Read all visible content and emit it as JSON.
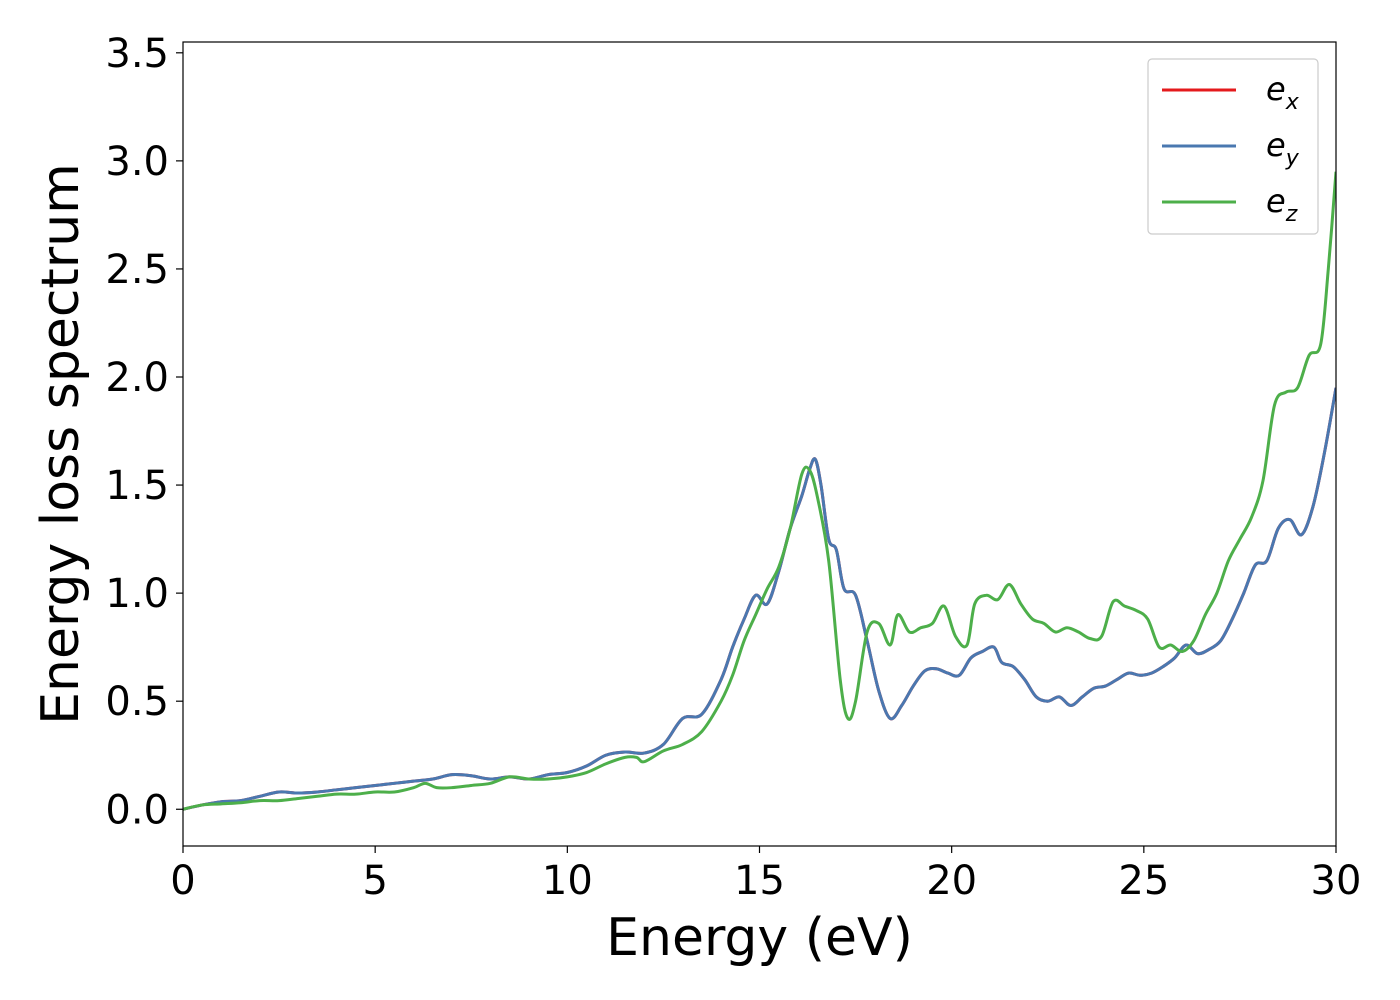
{
  "chart_data": {
    "type": "line",
    "title": "",
    "xlabel": "Energy (eV)",
    "ylabel": "Energy loss spectrum",
    "xlim": [
      0,
      30
    ],
    "ylim": [
      -0.17,
      3.55
    ],
    "xticks": [
      0,
      5,
      10,
      15,
      20,
      25,
      30
    ],
    "xtick_labels": [
      "0",
      "5",
      "10",
      "15",
      "20",
      "25",
      "30"
    ],
    "yticks": [
      0.0,
      0.5,
      1.0,
      1.5,
      2.0,
      2.5,
      3.0,
      3.5
    ],
    "ytick_labels": [
      "0.0",
      "0.5",
      "1.0",
      "1.5",
      "2.0",
      "2.5",
      "3.0",
      "3.5"
    ],
    "grid": false,
    "legend_position": "top-right",
    "series": [
      {
        "name": "e",
        "sub": "x",
        "color": "#e41a1c",
        "x": [
          0,
          0.5,
          1,
          1.5,
          2,
          2.5,
          3,
          3.5,
          4,
          4.5,
          5,
          5.5,
          6,
          6.5,
          7,
          7.5,
          8,
          8.5,
          9,
          9.5,
          10,
          10.5,
          11,
          11.5,
          12,
          12.5,
          13,
          13.5,
          14,
          14.3,
          14.6,
          14.9,
          15.2,
          15.5,
          15.8,
          16.1,
          16.3,
          16.45,
          16.6,
          16.8,
          17,
          17.2,
          17.5,
          17.8,
          18.1,
          18.4,
          18.7,
          19,
          19.3,
          19.6,
          19.9,
          20.2,
          20.5,
          20.8,
          21.1,
          21.3,
          21.6,
          21.9,
          22.2,
          22.5,
          22.8,
          23.1,
          23.4,
          23.7,
          24,
          24.3,
          24.6,
          24.9,
          25.2,
          25.5,
          25.8,
          26.1,
          26.4,
          26.7,
          27,
          27.3,
          27.6,
          27.9,
          28.2,
          28.5,
          28.8,
          29.1,
          29.4,
          29.7,
          30
        ],
        "y": [
          0.0,
          0.02,
          0.035,
          0.04,
          0.06,
          0.08,
          0.075,
          0.08,
          0.09,
          0.1,
          0.11,
          0.12,
          0.13,
          0.14,
          0.16,
          0.155,
          0.14,
          0.15,
          0.14,
          0.16,
          0.17,
          0.2,
          0.25,
          0.265,
          0.26,
          0.3,
          0.42,
          0.44,
          0.6,
          0.75,
          0.88,
          0.99,
          0.95,
          1.1,
          1.3,
          1.45,
          1.57,
          1.62,
          1.5,
          1.25,
          1.2,
          1.02,
          0.99,
          0.78,
          0.55,
          0.42,
          0.48,
          0.57,
          0.64,
          0.65,
          0.63,
          0.62,
          0.7,
          0.73,
          0.75,
          0.68,
          0.66,
          0.6,
          0.52,
          0.5,
          0.52,
          0.48,
          0.52,
          0.56,
          0.57,
          0.6,
          0.63,
          0.62,
          0.63,
          0.66,
          0.7,
          0.76,
          0.72,
          0.74,
          0.78,
          0.88,
          1.0,
          1.13,
          1.15,
          1.3,
          1.34,
          1.27,
          1.4,
          1.65,
          1.95
        ]
      },
      {
        "name": "e",
        "sub": "y",
        "color": "#4a78b0",
        "x": [
          0,
          0.5,
          1,
          1.5,
          2,
          2.5,
          3,
          3.5,
          4,
          4.5,
          5,
          5.5,
          6,
          6.5,
          7,
          7.5,
          8,
          8.5,
          9,
          9.5,
          10,
          10.5,
          11,
          11.5,
          12,
          12.5,
          13,
          13.5,
          14,
          14.3,
          14.6,
          14.9,
          15.2,
          15.5,
          15.8,
          16.1,
          16.3,
          16.45,
          16.6,
          16.8,
          17,
          17.2,
          17.5,
          17.8,
          18.1,
          18.4,
          18.7,
          19,
          19.3,
          19.6,
          19.9,
          20.2,
          20.5,
          20.8,
          21.1,
          21.3,
          21.6,
          21.9,
          22.2,
          22.5,
          22.8,
          23.1,
          23.4,
          23.7,
          24,
          24.3,
          24.6,
          24.9,
          25.2,
          25.5,
          25.8,
          26.1,
          26.4,
          26.7,
          27,
          27.3,
          27.6,
          27.9,
          28.2,
          28.5,
          28.8,
          29.1,
          29.4,
          29.7,
          30
        ],
        "y": [
          0.0,
          0.02,
          0.035,
          0.04,
          0.06,
          0.08,
          0.075,
          0.08,
          0.09,
          0.1,
          0.11,
          0.12,
          0.13,
          0.14,
          0.16,
          0.155,
          0.14,
          0.15,
          0.14,
          0.16,
          0.17,
          0.2,
          0.25,
          0.265,
          0.26,
          0.3,
          0.42,
          0.44,
          0.6,
          0.75,
          0.88,
          0.99,
          0.95,
          1.1,
          1.3,
          1.45,
          1.57,
          1.62,
          1.5,
          1.25,
          1.2,
          1.02,
          0.99,
          0.78,
          0.55,
          0.42,
          0.48,
          0.57,
          0.64,
          0.65,
          0.63,
          0.62,
          0.7,
          0.73,
          0.75,
          0.68,
          0.66,
          0.6,
          0.52,
          0.5,
          0.52,
          0.48,
          0.52,
          0.56,
          0.57,
          0.6,
          0.63,
          0.62,
          0.63,
          0.66,
          0.7,
          0.76,
          0.72,
          0.74,
          0.78,
          0.88,
          1.0,
          1.13,
          1.15,
          1.3,
          1.34,
          1.27,
          1.4,
          1.65,
          1.95
        ]
      },
      {
        "name": "e",
        "sub": "z",
        "color": "#4daf4a",
        "x": [
          0,
          0.5,
          1,
          1.5,
          2,
          2.5,
          3,
          3.5,
          4,
          4.5,
          5,
          5.5,
          6,
          6.3,
          6.6,
          7,
          7.5,
          8,
          8.5,
          9,
          9.5,
          10,
          10.5,
          11,
          11.5,
          11.8,
          12,
          12.5,
          13,
          13.5,
          14,
          14.3,
          14.6,
          14.9,
          15.2,
          15.5,
          15.8,
          16.1,
          16.3,
          16.5,
          16.8,
          17.1,
          17.3,
          17.5,
          17.8,
          18.1,
          18.4,
          18.6,
          18.9,
          19.2,
          19.5,
          19.8,
          20.1,
          20.4,
          20.6,
          20.9,
          21.2,
          21.5,
          21.8,
          22.1,
          22.4,
          22.7,
          23,
          23.3,
          23.6,
          23.9,
          24.2,
          24.5,
          24.8,
          25.1,
          25.4,
          25.7,
          26,
          26.3,
          26.6,
          26.9,
          27.2,
          27.5,
          27.8,
          28.1,
          28.4,
          28.7,
          29,
          29.3,
          29.6,
          29.8,
          30
        ],
        "y": [
          0.0,
          0.02,
          0.025,
          0.03,
          0.04,
          0.04,
          0.05,
          0.06,
          0.07,
          0.07,
          0.08,
          0.08,
          0.1,
          0.12,
          0.1,
          0.1,
          0.11,
          0.12,
          0.15,
          0.14,
          0.14,
          0.15,
          0.17,
          0.21,
          0.24,
          0.24,
          0.22,
          0.27,
          0.3,
          0.36,
          0.5,
          0.62,
          0.78,
          0.9,
          1.02,
          1.12,
          1.3,
          1.55,
          1.57,
          1.45,
          1.15,
          0.6,
          0.42,
          0.5,
          0.82,
          0.86,
          0.76,
          0.9,
          0.82,
          0.84,
          0.86,
          0.94,
          0.8,
          0.76,
          0.95,
          0.99,
          0.97,
          1.04,
          0.95,
          0.88,
          0.86,
          0.82,
          0.84,
          0.82,
          0.79,
          0.8,
          0.96,
          0.94,
          0.92,
          0.88,
          0.75,
          0.76,
          0.73,
          0.78,
          0.9,
          1.0,
          1.15,
          1.25,
          1.35,
          1.52,
          1.87,
          1.93,
          1.95,
          2.1,
          2.15,
          2.5,
          2.95
        ]
      }
    ]
  }
}
